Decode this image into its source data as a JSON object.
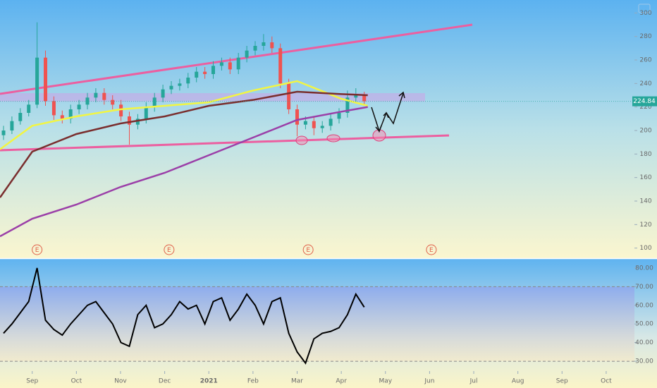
{
  "chart_data": [
    {
      "type": "candlestick",
      "xlim": [
        -0.73,
        13.64
      ],
      "ylim": [
        92,
        311
      ],
      "yticks": [
        100,
        120,
        140,
        160,
        180,
        200,
        220,
        240,
        260,
        280,
        300
      ],
      "current_price": 224.84,
      "up_color": "#26a69a",
      "down_color": "#ef5350",
      "x": [
        -0.65,
        -0.46,
        -0.27,
        -0.08,
        0.11,
        0.3,
        0.49,
        0.68,
        0.87,
        1.06,
        1.25,
        1.44,
        1.63,
        1.82,
        2.01,
        2.2,
        2.39,
        2.58,
        2.77,
        2.96,
        3.15,
        3.34,
        3.53,
        3.72,
        3.91,
        4.1,
        4.29,
        4.48,
        4.67,
        4.86,
        5.05,
        5.24,
        5.43,
        5.62,
        5.81,
        6.0,
        6.19,
        6.38,
        6.57,
        6.76,
        6.95,
        7.14,
        7.33,
        7.52
      ],
      "open": [
        196,
        200,
        208,
        215,
        222,
        262,
        225,
        213,
        210,
        218,
        222,
        228,
        232,
        226,
        222,
        212,
        205,
        210,
        220,
        228,
        235,
        238,
        240,
        245,
        250,
        248,
        255,
        258,
        252,
        262,
        268,
        272,
        275,
        270,
        240,
        218,
        205,
        208,
        202,
        204,
        210,
        215,
        228,
        230
      ],
      "high": [
        204,
        212,
        219,
        226,
        292,
        268,
        229,
        217,
        222,
        226,
        232,
        236,
        236,
        230,
        226,
        216,
        214,
        224,
        232,
        239,
        242,
        244,
        249,
        254,
        254,
        259,
        262,
        262,
        266,
        272,
        276,
        282,
        280,
        274,
        244,
        222,
        212,
        212,
        208,
        214,
        219,
        234,
        236,
        233
      ],
      "low": [
        192,
        197,
        205,
        212,
        219,
        221,
        209,
        206,
        206,
        214,
        218,
        224,
        222,
        218,
        208,
        188,
        201,
        206,
        216,
        224,
        231,
        234,
        236,
        241,
        244,
        244,
        251,
        248,
        248,
        258,
        264,
        268,
        266,
        236,
        214,
        195,
        201,
        196,
        198,
        200,
        206,
        211,
        224,
        221
      ],
      "close": [
        200,
        208,
        215,
        222,
        262,
        225,
        213,
        210,
        218,
        222,
        228,
        232,
        226,
        222,
        212,
        205,
        210,
        220,
        228,
        235,
        238,
        240,
        245,
        250,
        248,
        255,
        258,
        252,
        262,
        268,
        272,
        275,
        270,
        240,
        218,
        205,
        208,
        202,
        204,
        210,
        215,
        228,
        230,
        224.84
      ],
      "series": [
        {
          "color": "#f2f542",
          "x": [
            -0.73,
            0,
            1,
            2,
            3,
            4,
            5,
            6,
            7,
            7.6
          ],
          "values": [
            184,
            204,
            212,
            218,
            221,
            224,
            234,
            242,
            227,
            221
          ]
        },
        {
          "color": "#7a2e2e",
          "x": [
            -0.73,
            0,
            1,
            2,
            3,
            4,
            5,
            6,
            7,
            7.6
          ],
          "values": [
            143,
            182,
            197,
            206,
            212,
            221,
            226,
            233,
            231,
            230
          ]
        },
        {
          "color": "#9b3fa8",
          "x": [
            -0.73,
            0,
            1,
            2,
            3,
            4,
            5,
            6,
            7,
            7.6
          ],
          "values": [
            110,
            125,
            137,
            152,
            164,
            179,
            194,
            209,
            216,
            220
          ]
        }
      ],
      "events": [
        {
          "x": 0.11,
          "label": "E"
        },
        {
          "x": 3.1,
          "label": "E"
        },
        {
          "x": 6.25,
          "label": "E"
        },
        {
          "x": 9.04,
          "label": "E"
        }
      ]
    },
    {
      "type": "line",
      "xlim": [
        -0.73,
        13.64
      ],
      "ylim": [
        27,
        84.5
      ],
      "yticks": [
        {
          "value": 30,
          "label": "30.00"
        },
        {
          "value": 40,
          "label": "40.00"
        },
        {
          "value": 50,
          "label": "50.00"
        },
        {
          "value": 60,
          "label": "60.00"
        },
        {
          "value": 70,
          "label": "70.00"
        },
        {
          "value": 80,
          "label": "80.00"
        }
      ],
      "xticks": [
        {
          "value": 0,
          "label": "Sep"
        },
        {
          "value": 1,
          "label": "Oct"
        },
        {
          "value": 2,
          "label": "Nov"
        },
        {
          "value": 3,
          "label": "Dec"
        },
        {
          "value": 4,
          "label": "2021"
        },
        {
          "value": 5,
          "label": "Feb"
        },
        {
          "value": 6,
          "label": "Mar"
        },
        {
          "value": 7,
          "label": "Apr"
        },
        {
          "value": 8,
          "label": "May"
        },
        {
          "value": 9,
          "label": "Jun"
        },
        {
          "value": 10,
          "label": "Jul"
        },
        {
          "value": 11,
          "label": "Aug"
        },
        {
          "value": 12,
          "label": "Sep"
        },
        {
          "value": 13,
          "label": "Oct"
        }
      ],
      "band": [
        30,
        70
      ],
      "series": [
        {
          "color": "#000000",
          "x": [
            -0.65,
            -0.46,
            -0.27,
            -0.08,
            0.11,
            0.3,
            0.49,
            0.68,
            0.87,
            1.06,
            1.25,
            1.44,
            1.63,
            1.82,
            2.01,
            2.2,
            2.39,
            2.58,
            2.77,
            2.96,
            3.15,
            3.34,
            3.53,
            3.72,
            3.91,
            4.1,
            4.29,
            4.48,
            4.67,
            4.86,
            5.05,
            5.24,
            5.43,
            5.62,
            5.81,
            6.0,
            6.19,
            6.38,
            6.57,
            6.76,
            6.95,
            7.14,
            7.33,
            7.52
          ],
          "values": [
            45,
            50,
            56,
            62,
            80,
            52,
            47,
            44,
            50,
            55,
            60,
            62,
            56,
            50,
            40,
            38,
            55,
            60,
            48,
            50,
            55,
            62,
            58,
            60,
            50,
            62,
            64,
            52,
            58,
            66,
            60,
            50,
            62,
            64,
            45,
            35,
            29,
            42,
            45,
            46,
            48,
            55,
            66,
            59
          ]
        }
      ]
    }
  ]
}
